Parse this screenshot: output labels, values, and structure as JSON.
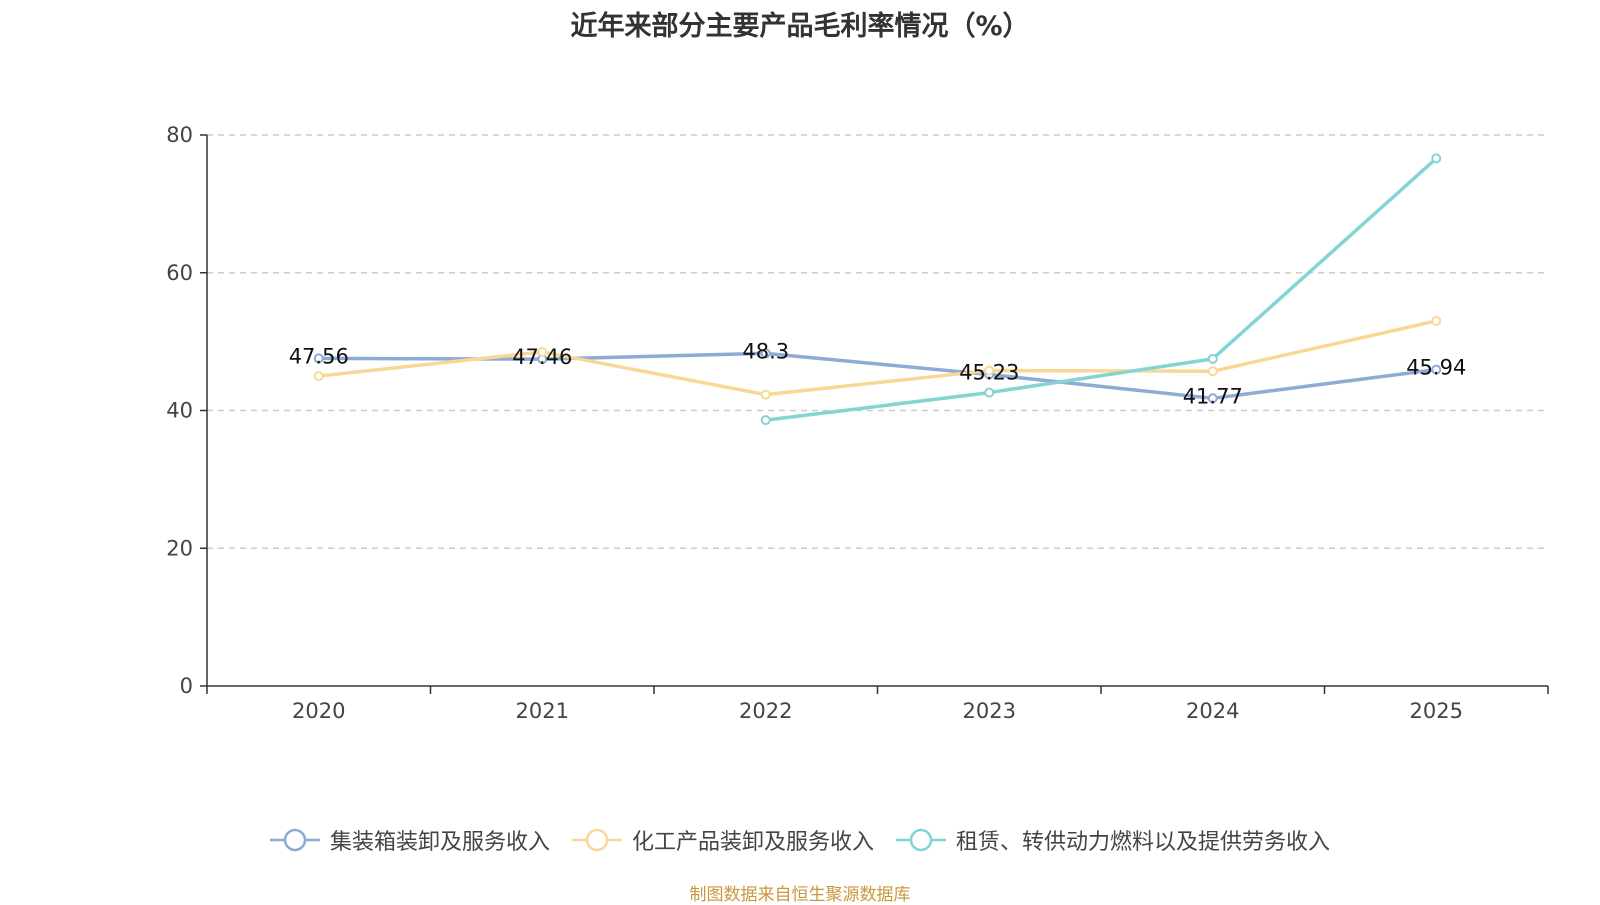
{
  "chart_data": {
    "type": "line",
    "title": "近年来部分主要产品毛利率情况（%）",
    "xlabel": "",
    "ylabel": "",
    "categories": [
      "2020",
      "2021",
      "2022",
      "2023",
      "2024",
      "2025"
    ],
    "ylim": [
      0,
      80
    ],
    "yticks": [
      0,
      20,
      40,
      60,
      80
    ],
    "grid": true,
    "legend_position": "bottom",
    "series": [
      {
        "name": "集装箱装卸及服务收入",
        "color": "#8eabd6",
        "values": [
          47.56,
          47.46,
          48.3,
          45.23,
          41.77,
          45.94
        ],
        "labels": [
          "47.56",
          "47.46",
          "48.3",
          "45.23",
          "41.77",
          "45.94"
        ]
      },
      {
        "name": "化工产品装卸及服务收入",
        "color": "#f9d897",
        "values": [
          45.0,
          48.5,
          42.3,
          45.8,
          45.7,
          53.0
        ],
        "labels": null
      },
      {
        "name": "租赁、转供动力燃料以及提供劳务收入",
        "color": "#84d4d4",
        "values": [
          null,
          null,
          38.6,
          42.6,
          47.5,
          76.6
        ],
        "labels": null
      }
    ]
  },
  "source_note": "制图数据来自恒生聚源数据库"
}
